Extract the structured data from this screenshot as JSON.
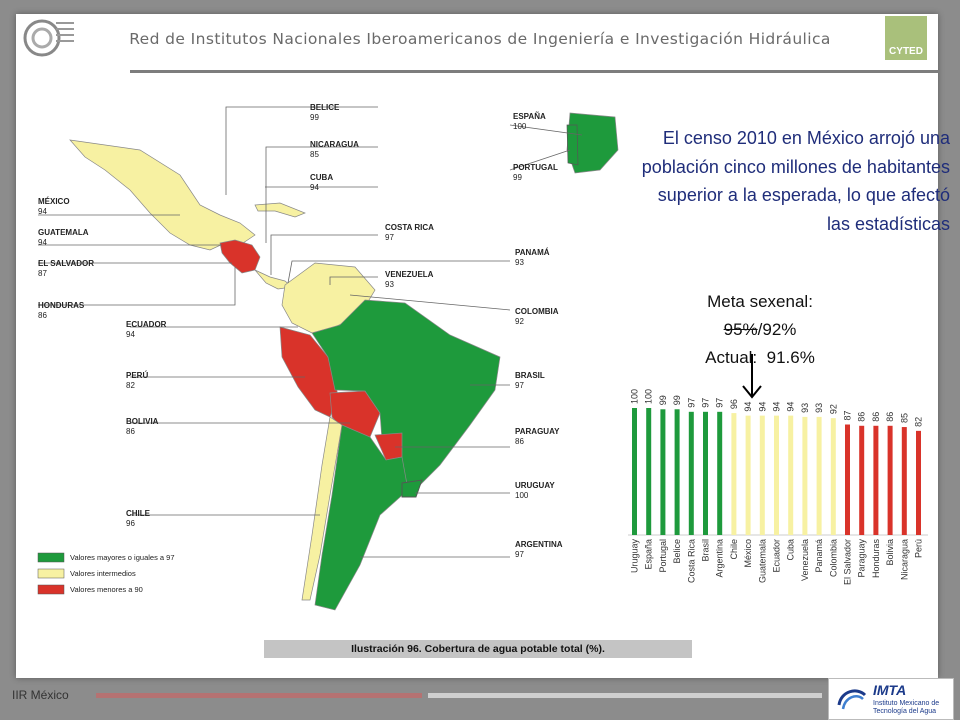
{
  "header": {
    "title": "Red de Institutos Nacionales Iberoamericanos de Ingeniería e Investigación Hidráulica",
    "right_logo": "CYTED"
  },
  "map": {
    "labels": [
      {
        "name": "BELICE",
        "value": "99"
      },
      {
        "name": "NICARAGUA",
        "value": "85"
      },
      {
        "name": "CUBA",
        "value": "94"
      },
      {
        "name": "MÉXICO",
        "value": "94"
      },
      {
        "name": "GUATEMALA",
        "value": "94"
      },
      {
        "name": "EL SALVADOR",
        "value": "87"
      },
      {
        "name": "HONDURAS",
        "value": "86"
      },
      {
        "name": "COSTA RICA",
        "value": "97"
      },
      {
        "name": "PANAMÁ",
        "value": "93"
      },
      {
        "name": "VENEZUELA",
        "value": "93"
      },
      {
        "name": "ECUADOR",
        "value": "94"
      },
      {
        "name": "COLOMBIA",
        "value": "92"
      },
      {
        "name": "PERÚ",
        "value": "82"
      },
      {
        "name": "BRASIL",
        "value": "97"
      },
      {
        "name": "BOLIVIA",
        "value": "86"
      },
      {
        "name": "PARAGUAY",
        "value": "86"
      },
      {
        "name": "URUGUAY",
        "value": "100"
      },
      {
        "name": "CHILE",
        "value": "96"
      },
      {
        "name": "ARGENTINA",
        "value": "97"
      },
      {
        "name": "ESPAÑA",
        "value": "100"
      },
      {
        "name": "PORTUGAL",
        "value": "99"
      }
    ],
    "legend": [
      {
        "label": "Valores mayores o iguales a 97",
        "color": "#1e9a3c"
      },
      {
        "label": "Valores intermedios",
        "color": "#f7f1a2"
      },
      {
        "label": "Valores menores a 90",
        "color": "#d9332a"
      }
    ],
    "caption": "Ilustración 96. Cobertura de agua potable total (%)."
  },
  "text_block": "El censo 2010 en México arrojó una población cinco millones de habitantes superior a la esperada, lo que afectó las estadísticas",
  "meta": {
    "line1": "Meta sexenal:",
    "old": "95%",
    "new": "/92%",
    "actual_label": "Actual:",
    "actual_value": "91.6%"
  },
  "colors": {
    "green": "#1e9a3c",
    "yellow": "#f7f1a2",
    "red": "#d9332a"
  },
  "chart_data": {
    "type": "bar",
    "categories": [
      "Uruguay",
      "España",
      "Portugal",
      "Belice",
      "Costa Rica",
      "Brasil",
      "Argentina",
      "Chile",
      "México",
      "Guatemala",
      "Ecuador",
      "Cuba",
      "Venezuela",
      "Panamá",
      "Colombia",
      "El Salvador",
      "Paraguay",
      "Honduras",
      "Bolivia",
      "Nicaragua",
      "Perú"
    ],
    "values": [
      100,
      100,
      99,
      99,
      97,
      97,
      97,
      96,
      94,
      94,
      94,
      94,
      93,
      93,
      92,
      87,
      86,
      86,
      86,
      85,
      82
    ],
    "color_groups": [
      "green",
      "green",
      "green",
      "green",
      "green",
      "green",
      "green",
      "yellow",
      "yellow",
      "yellow",
      "yellow",
      "yellow",
      "yellow",
      "yellow",
      "yellow",
      "red",
      "red",
      "red",
      "red",
      "red",
      "red"
    ],
    "ylim": [
      0,
      100
    ]
  },
  "footer": {
    "left_logo": "IIR México",
    "imta_title": "IMTA",
    "imta_sub": "Instituto Mexicano de Tecnología del Agua"
  }
}
